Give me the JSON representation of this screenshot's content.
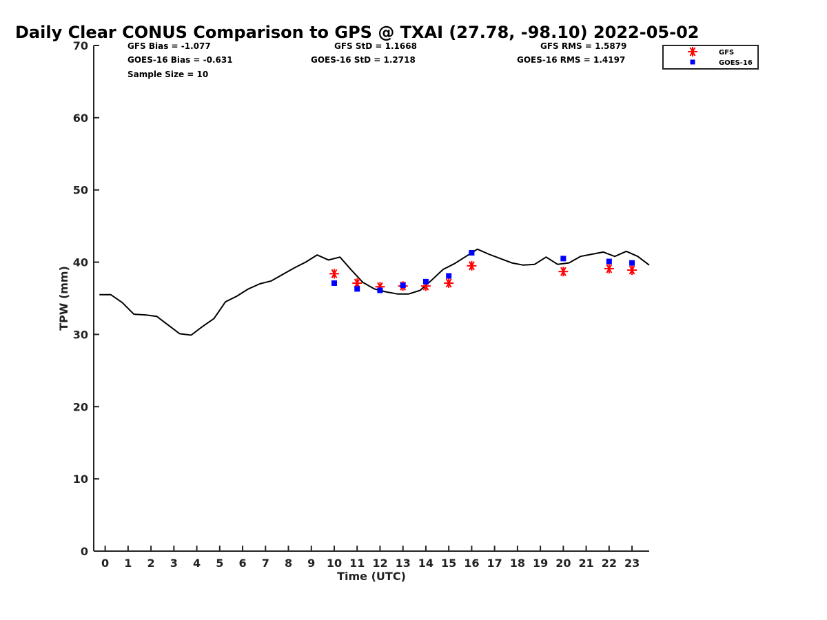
{
  "chart_data": {
    "type": "line",
    "title": "Daily Clear CONUS Comparison to GPS @ TXAI (27.78, -98.10) 2022-05-02",
    "xlabel": "Time (UTC)",
    "ylabel": "TPW (mm)",
    "xlim": [
      -0.5,
      23.75
    ],
    "ylim": [
      0,
      70
    ],
    "xticks": [
      "0",
      "1",
      "2",
      "3",
      "4",
      "5",
      "6",
      "7",
      "8",
      "9",
      "10",
      "11",
      "12",
      "13",
      "14",
      "15",
      "16",
      "17",
      "18",
      "19",
      "20",
      "21",
      "22",
      "23"
    ],
    "yticks": [
      "0",
      "10",
      "20",
      "30",
      "40",
      "50",
      "60",
      "70"
    ],
    "grid": false,
    "legend_position": "top-right",
    "stats": {
      "gfs_bias": "GFS Bias = -1.077",
      "goes_bias": "GOES-16 Bias = -0.631",
      "sample_size": "Sample Size = 10",
      "gfs_std": "GFS StD = 1.1668",
      "goes_std": "GOES-16 StD = 1.2718",
      "gfs_rms": "GFS RMS = 1.5879",
      "goes_rms": "GOES-16 RMS = 1.4197"
    },
    "series": [
      {
        "name": "",
        "kind": "line",
        "color": "#000000",
        "x": [
          -0.25,
          0.25,
          0.75,
          1.25,
          1.75,
          2.25,
          2.75,
          3.25,
          3.75,
          4.25,
          4.75,
          5.25,
          5.75,
          6.25,
          6.75,
          7.25,
          7.75,
          8.25,
          8.75,
          9.25,
          9.75,
          10.25,
          10.75,
          11.25,
          11.75,
          12.25,
          12.75,
          13.25,
          13.75,
          14.25,
          14.75,
          15.25,
          15.75,
          16.25,
          16.75,
          17.25,
          17.75,
          18.25,
          18.75,
          19.25,
          19.75,
          20.25,
          20.75,
          21.25,
          21.75,
          22.25,
          22.75,
          23.25,
          23.75
        ],
        "y": [
          35.5,
          35.5,
          34.4,
          32.8,
          32.7,
          32.5,
          31.3,
          30.1,
          29.9,
          31.1,
          32.2,
          34.5,
          35.3,
          36.3,
          37.0,
          37.4,
          38.3,
          39.2,
          40.0,
          41.0,
          40.3,
          40.7,
          38.9,
          37.2,
          36.3,
          35.9,
          35.6,
          35.6,
          36.1,
          37.5,
          39.0,
          39.8,
          40.8,
          41.8,
          41.1,
          40.5,
          39.9,
          39.6,
          39.7,
          40.7,
          39.7,
          39.9,
          40.8,
          41.1,
          41.4,
          40.8,
          41.5,
          40.8,
          39.6
        ]
      },
      {
        "name": "GFS",
        "kind": "marker",
        "marker": "asterisk",
        "color": "#ff0000",
        "x": [
          10,
          11,
          12,
          13,
          14,
          15,
          16,
          20,
          22,
          23
        ],
        "y": [
          38.4,
          37.1,
          36.6,
          36.7,
          36.7,
          37.1,
          39.5,
          38.7,
          39.1,
          38.9
        ]
      },
      {
        "name": "GOES-16",
        "kind": "marker",
        "marker": "square",
        "color": "#0000ff",
        "x": [
          10,
          11,
          12,
          13,
          14,
          15,
          16,
          20,
          22,
          23
        ],
        "y": [
          37.1,
          36.3,
          36.1,
          36.8,
          37.3,
          38.1,
          41.3,
          40.5,
          40.1,
          39.9
        ]
      }
    ]
  }
}
